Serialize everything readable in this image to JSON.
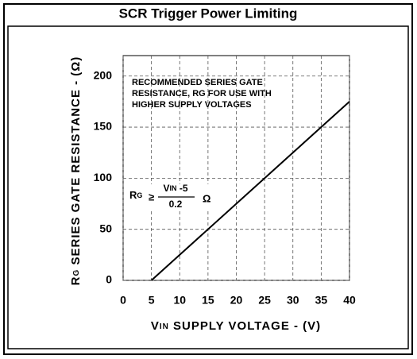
{
  "chart_data": {
    "type": "line",
    "title": "SCR Trigger Power Limiting",
    "y_label": {
      "main": "R",
      "sub": "G",
      "rest": " SERIES GATE RESISTANCE - (Ω)"
    },
    "x_label": {
      "main": "V",
      "sub": "IN",
      "rest": " SUPPLY VOLTAGE - (V)"
    },
    "annotation": [
      "RECOMMENDED SERIES GATE",
      "RESISTANCE, RG FOR USE WITH",
      "HIGHER SUPPLY VOLTAGES"
    ],
    "formula": {
      "lhs": "R",
      "lhs_sub": "G",
      "op": "≥",
      "num": "V",
      "num_sub": "IN",
      "num_rest": " -5",
      "den": "0.2",
      "unit": "Ω"
    },
    "x": [
      5,
      40
    ],
    "values": [
      0,
      175
    ],
    "color": "#000000",
    "xlim": [
      0,
      40
    ],
    "xticks": [
      0,
      5,
      10,
      15,
      20,
      25,
      30,
      35,
      40
    ],
    "ylim": [
      0,
      220
    ],
    "yticks": [
      0,
      50,
      100,
      150,
      200
    ],
    "grid": true
  }
}
